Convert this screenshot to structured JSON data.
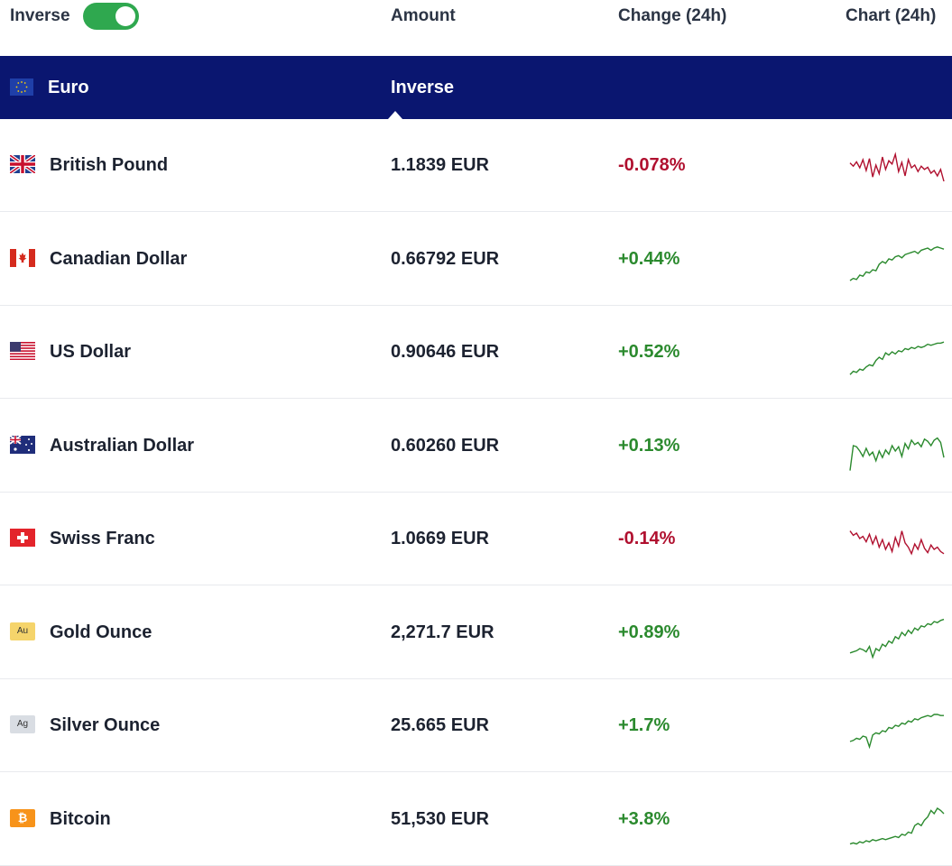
{
  "header": {
    "inverse_label": "Inverse",
    "inverse_on": true,
    "amount_label": "Amount",
    "change_label": "Change (24h)",
    "chart_label": "Chart (24h)"
  },
  "base": {
    "name": "Euro",
    "column_label": "Inverse",
    "flag_icon": "eu-flag-icon"
  },
  "colors": {
    "base_bg": "#0a1670",
    "toggle_on": "#2fa84f",
    "negative": "#b0102f",
    "positive": "#2b8a2e"
  },
  "rows": [
    {
      "name": "British Pound",
      "amount": "1.1839 EUR",
      "change": "-0.078%",
      "direction": "neg",
      "icon": "uk-flag-icon",
      "spark": [
        46,
        52,
        44,
        55,
        40,
        60,
        38,
        72,
        50,
        66,
        35,
        58,
        42,
        48,
        30,
        62,
        45,
        70,
        40,
        55,
        50,
        62,
        52,
        58,
        54,
        65,
        60,
        70,
        58,
        80
      ]
    },
    {
      "name": "Canadian Dollar",
      "amount": "0.66792 EUR",
      "change": "+0.44%",
      "direction": "pos",
      "icon": "ca-flag-icon",
      "spark": [
        90,
        86,
        88,
        80,
        82,
        74,
        76,
        70,
        72,
        60,
        55,
        58,
        50,
        52,
        46,
        44,
        48,
        42,
        40,
        38,
        36,
        40,
        34,
        32,
        30,
        34,
        30,
        28,
        30,
        32
      ]
    },
    {
      "name": "US Dollar",
      "amount": "0.90646 EUR",
      "change": "+0.52%",
      "direction": "pos",
      "icon": "us-flag-icon",
      "spark": [
        92,
        86,
        88,
        82,
        84,
        78,
        74,
        76,
        66,
        60,
        64,
        52,
        56,
        50,
        54,
        48,
        50,
        44,
        46,
        42,
        44,
        40,
        42,
        40,
        36,
        38,
        36,
        34,
        34,
        32
      ]
    },
    {
      "name": "Australian Dollar",
      "amount": "0.60260 EUR",
      "change": "+0.13%",
      "direction": "pos",
      "icon": "au-flag-icon",
      "spark": [
        96,
        50,
        52,
        60,
        70,
        55,
        68,
        62,
        78,
        60,
        72,
        58,
        66,
        50,
        60,
        52,
        70,
        46,
        56,
        40,
        48,
        44,
        52,
        38,
        42,
        50,
        40,
        36,
        44,
        72
      ]
    },
    {
      "name": "Swiss Franc",
      "amount": "1.0669 EUR",
      "change": "-0.14%",
      "direction": "neg",
      "icon": "ch-flag-icon",
      "spark": [
        36,
        44,
        40,
        50,
        46,
        56,
        42,
        60,
        46,
        66,
        52,
        70,
        58,
        74,
        48,
        64,
        36,
        58,
        66,
        78,
        60,
        70,
        52,
        68,
        76,
        62,
        70,
        66,
        74,
        78
      ]
    },
    {
      "name": "Gold Ounce",
      "amount": "2,271.7 EUR",
      "change": "+0.89%",
      "direction": "pos",
      "icon": "gold-icon",
      "icon_text": "Au",
      "spark": [
        88,
        86,
        84,
        80,
        82,
        86,
        76,
        96,
        80,
        84,
        72,
        76,
        66,
        70,
        58,
        62,
        50,
        56,
        46,
        52,
        42,
        46,
        38,
        40,
        34,
        36,
        30,
        32,
        28,
        26
      ]
    },
    {
      "name": "Silver Ounce",
      "amount": "25.665 EUR",
      "change": "+1.7%",
      "direction": "pos",
      "icon": "silver-icon",
      "icon_text": "Ag",
      "spark": [
        80,
        78,
        74,
        76,
        70,
        72,
        90,
        68,
        64,
        66,
        60,
        62,
        54,
        56,
        50,
        52,
        46,
        48,
        42,
        44,
        38,
        40,
        36,
        34,
        32,
        34,
        30,
        30,
        32,
        32
      ]
    },
    {
      "name": "Bitcoin",
      "amount": "51,530 EUR",
      "change": "+3.8%",
      "direction": "pos",
      "icon": "bitcoin-icon",
      "icon_text": "₿",
      "spark": [
        96,
        94,
        96,
        92,
        94,
        90,
        92,
        88,
        90,
        88,
        86,
        88,
        86,
        84,
        82,
        84,
        78,
        80,
        74,
        76,
        62,
        58,
        62,
        52,
        46,
        34,
        40,
        30,
        34,
        40
      ]
    }
  ]
}
